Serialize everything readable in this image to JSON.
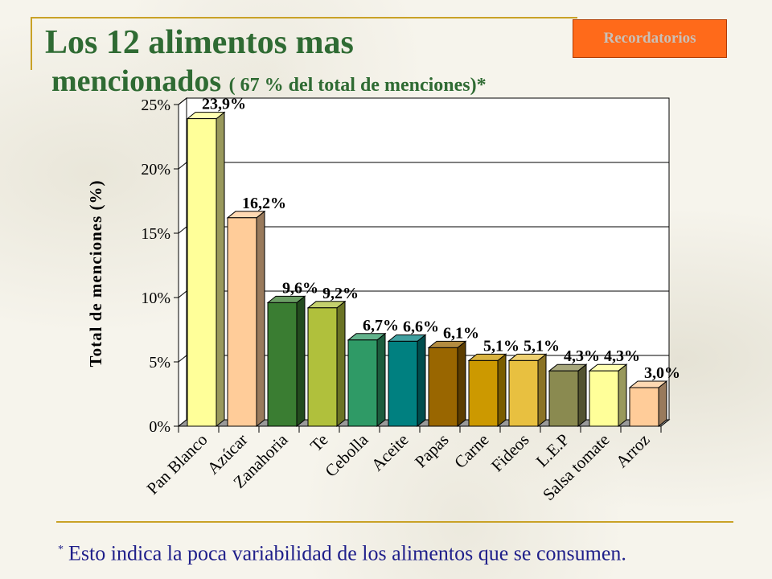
{
  "slide": {
    "title_line1": "Los 12 alimentos mas",
    "title_line2": "mencionados",
    "subtitle": "( 67 % del total de menciones)*",
    "reminder_button": "Recordatorios",
    "footnote_mark": "*",
    "footnote": "Esto indica la poca variabilidad de los alimentos que se consumen.",
    "accent_color": "#c9a227",
    "title_color": "#2f6b33",
    "button_color": "#ff6a1a"
  },
  "chart_data": {
    "type": "bar",
    "style": "3d",
    "ylabel": "Total de menciones (%)",
    "ylim": [
      0,
      25
    ],
    "yticks": [
      "0%",
      "5%",
      "10%",
      "15%",
      "20%",
      "25%"
    ],
    "ytick_values": [
      0,
      5,
      10,
      15,
      20,
      25
    ],
    "grid": true,
    "categories": [
      "Pan Blanco",
      "Azúcar",
      "Zanahoria",
      "Te",
      "Cebolla",
      "Aceite",
      "Papas",
      "Carne",
      "Fideos",
      "L.E.P",
      "Salsa tomate",
      "Arroz"
    ],
    "values": [
      23.9,
      16.2,
      9.6,
      9.2,
      6.7,
      6.6,
      6.1,
      5.1,
      5.1,
      4.3,
      4.3,
      3.0
    ],
    "data_labels": [
      "23,9%",
      "16,2%",
      "9,6%",
      "9,2%",
      "6,7%",
      "6,6%",
      "6,1%",
      "5,1%",
      "5,1%",
      "4,3%",
      "4,3%",
      "3,0%"
    ],
    "bar_colors": [
      "#ffff99",
      "#ffcc99",
      "#3a7d32",
      "#b0c03c",
      "#2f9a66",
      "#008080",
      "#996600",
      "#cc9900",
      "#e8c040",
      "#8a8a50",
      "#ffff99",
      "#ffcc99"
    ]
  }
}
